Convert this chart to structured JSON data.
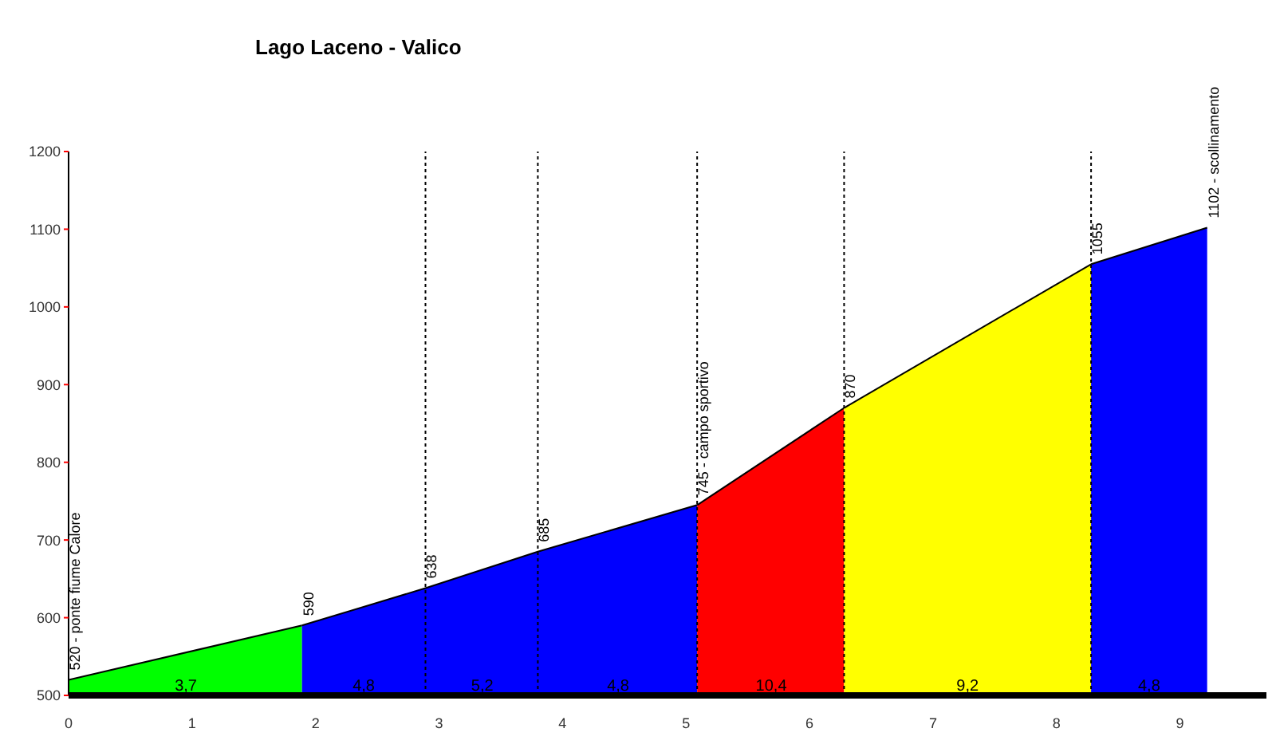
{
  "chart_data": {
    "type": "area",
    "title": "Lago Laceno - Valico",
    "series": [
      {
        "color": "#00ff00",
        "x": [
          0,
          1.89
        ],
        "values": [
          520,
          590
        ]
      },
      {
        "color": "#0000ff",
        "x": [
          1.89,
          2.89,
          3.8,
          5.09
        ],
        "values": [
          590,
          638,
          685,
          745
        ]
      },
      {
        "color": "#ff0000",
        "x": [
          5.09,
          6.28
        ],
        "values": [
          745,
          870
        ]
      },
      {
        "color": "#ffff00",
        "x": [
          6.28,
          8.28
        ],
        "values": [
          870,
          1055
        ]
      },
      {
        "color": "#0000ff",
        "x": [
          8.28,
          9.22
        ],
        "values": [
          1055,
          1102
        ]
      }
    ],
    "xlim": [
      0,
      9.7
    ],
    "xticks": [
      0,
      1,
      2,
      3,
      4,
      5,
      6,
      7,
      8,
      9
    ],
    "ylim": [
      500,
      1200
    ],
    "yticks": [
      500,
      600,
      700,
      800,
      900,
      1000,
      1100,
      1200
    ],
    "grid": false,
    "legend": false,
    "ref_lines": [
      {
        "axis": "x",
        "value": 2.89,
        "color": "#000000",
        "line_style": "dotted"
      },
      {
        "axis": "x",
        "value": 3.8,
        "color": "#000000",
        "line_style": "dotted"
      },
      {
        "axis": "x",
        "value": 5.09,
        "color": "#000000",
        "line_style": "dotted"
      },
      {
        "axis": "x",
        "value": 6.28,
        "color": "#000000",
        "line_style": "dotted"
      },
      {
        "axis": "x",
        "value": 8.28,
        "color": "#000000",
        "line_style": "dotted"
      }
    ],
    "annotations": [
      {
        "text": "520 - ponte fiume Calore",
        "x": 0,
        "y": 520
      },
      {
        "text": "590",
        "x": 1.89,
        "y": 590
      },
      {
        "text": "638",
        "x": 2.89,
        "y": 638
      },
      {
        "text": "685",
        "x": 3.8,
        "y": 685
      },
      {
        "text": "745 - campo sportivo",
        "x": 5.09,
        "y": 745
      },
      {
        "text": "870",
        "x": 6.28,
        "y": 870
      },
      {
        "text": "1055",
        "x": 8.28,
        "y": 1055
      },
      {
        "text": "1102 - scollinamento",
        "x": 9.22,
        "y": 1102
      },
      {
        "text": "3,7",
        "x": 0.95,
        "y": 500
      },
      {
        "text": "4,8",
        "x": 2.39,
        "y": 500
      },
      {
        "text": "5,2",
        "x": 3.35,
        "y": 500
      },
      {
        "text": "4,8",
        "x": 4.45,
        "y": 500
      },
      {
        "text": "10,4",
        "x": 5.69,
        "y": 500
      },
      {
        "text": "9,2",
        "x": 7.28,
        "y": 500
      },
      {
        "text": "4,8",
        "x": 8.75,
        "y": 500
      }
    ]
  }
}
